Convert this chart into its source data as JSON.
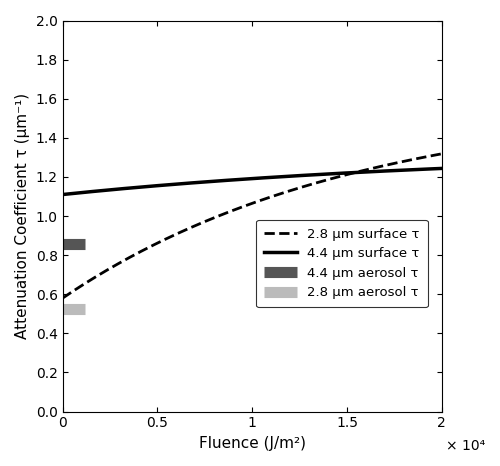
{
  "title": "",
  "xlabel": "Fluence (J/m²)",
  "ylabel": "Attenuation Coefficient τ (μm⁻¹)",
  "xlim": [
    0,
    20000
  ],
  "ylim": [
    0,
    2.0
  ],
  "yticks": [
    0,
    0.2,
    0.4,
    0.6,
    0.8,
    1.0,
    1.2,
    1.4,
    1.6,
    1.8,
    2.0
  ],
  "xtick_values": [
    0,
    5000,
    10000,
    15000,
    20000
  ],
  "xtick_labels": [
    "0",
    "0.5",
    "1",
    "1.5",
    "2"
  ],
  "xscale_label": "× 10⁴",
  "curve_28um_surface": {
    "tau_inf": 1.595,
    "tau_0": 0.58,
    "k": 6.5e-05,
    "color": "#000000",
    "linestyle": "dashed",
    "linewidth": 2.0,
    "label": "2.8 μm surface τ"
  },
  "curve_44um_surface": {
    "tau_inf": 1.335,
    "tau_0": 1.11,
    "k": 4.5e-05,
    "color": "#000000",
    "linestyle": "solid",
    "linewidth": 2.5,
    "label": "4.4 μm surface τ"
  },
  "aerosol_44um": {
    "y_value": 0.855,
    "x_start": -300,
    "x_end": 1200,
    "color": "#555555",
    "linewidth": 8,
    "label": "4.4 μm aerosol τ"
  },
  "aerosol_28um": {
    "y_value": 0.525,
    "x_start": -300,
    "x_end": 1200,
    "color": "#bbbbbb",
    "linewidth": 8,
    "label": "2.8 μm aerosol τ"
  },
  "figsize": [
    5.0,
    4.66
  ],
  "dpi": 100
}
